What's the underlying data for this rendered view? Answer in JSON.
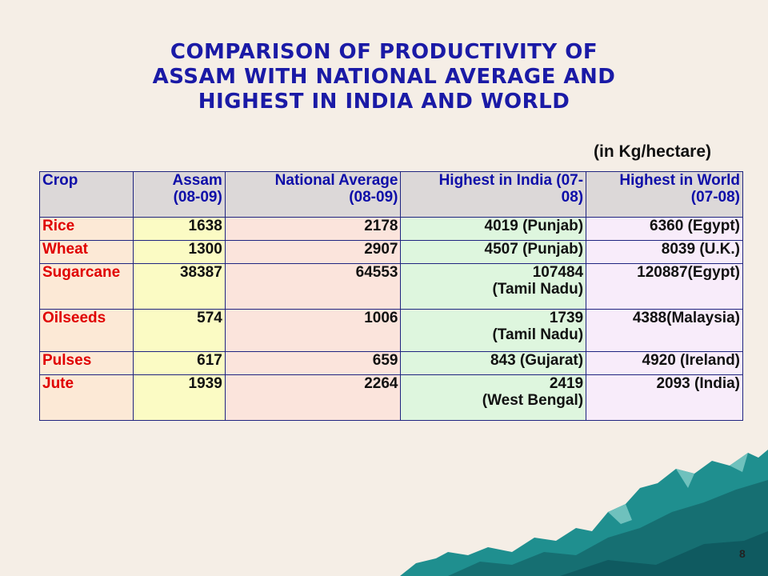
{
  "title": {
    "line1": "COMPARISON  OF PRODUCTIVITY OF",
    "line2": "ASSAM WITH NATIONAL AVERAGE AND",
    "line3": "HIGHEST IN INDIA AND WORLD"
  },
  "units": "(in Kg/hectare)",
  "table": {
    "headers": {
      "crop": "Crop",
      "assam": "Assam\n(08-09)",
      "national": "National Average\n(08-09)",
      "india": "Highest in India (07-\n08)",
      "world": "Highest in World\n(07-08)"
    },
    "rows": [
      {
        "crop": "Rice",
        "assam": "1638",
        "national": "2178",
        "india": "4019 (Punjab)",
        "world": "6360 (Egypt)"
      },
      {
        "crop": "Wheat",
        "assam": "1300",
        "national": "2907",
        "india": "4507 (Punjab)",
        "world": "8039 (U.K.)"
      },
      {
        "crop": "Sugarcane",
        "assam": "38387",
        "national": "64553",
        "india": "107484\n(Tamil Nadu)",
        "world": "120887(Egypt)"
      },
      {
        "crop": "Oilseeds",
        "assam": "574",
        "national": "1006",
        "india": "1739\n(Tamil Nadu)",
        "world": "4388(Malaysia)"
      },
      {
        "crop": "Pulses",
        "assam": "617",
        "national": "659",
        "india": "843 (Gujarat)",
        "world": "4920 (Ireland)"
      },
      {
        "crop": "Jute",
        "assam": "1939",
        "national": "2264",
        "india": "2419\n(West Bengal)",
        "world": "2093 (India)"
      }
    ]
  },
  "page_number": "8",
  "colors": {
    "background": "#f5eee6",
    "title": "#1a1aa6",
    "crop_names": "#e00000",
    "header_bg": "#dcd8d8",
    "mountain": "#1f8f8f"
  }
}
